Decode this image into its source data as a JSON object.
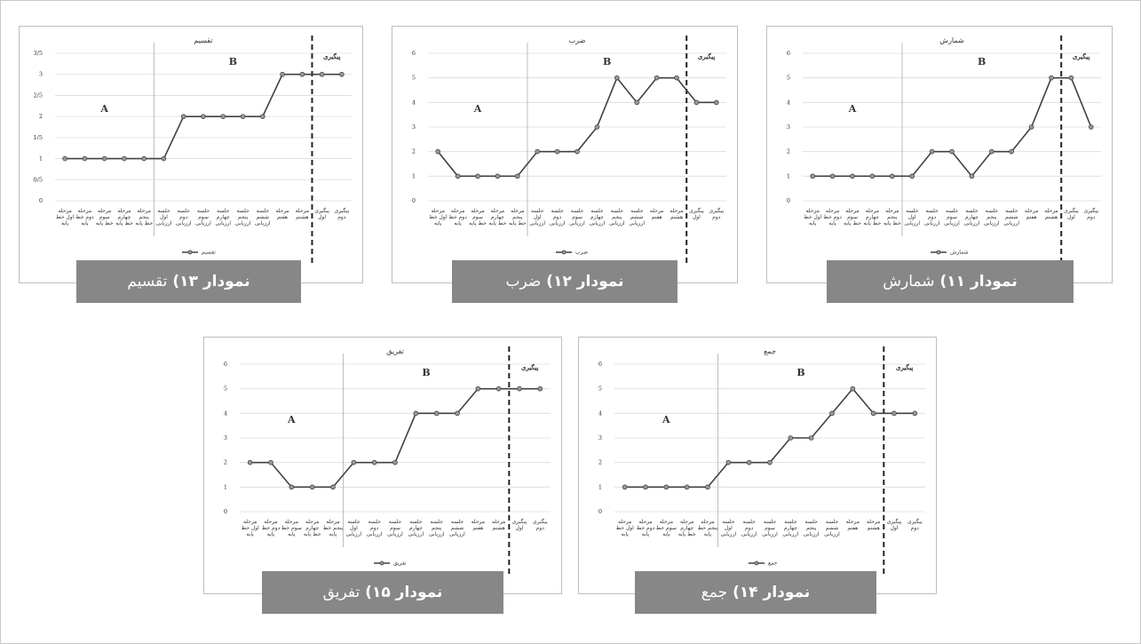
{
  "chart_data": [
    {
      "type": "line",
      "title": "تقسیم",
      "caption": {
        "label": "نمودار ۱۳)",
        "text": "تقسیم"
      },
      "categories": [
        "مرحله اول خط پایه",
        "مرحله دوم خط پایه",
        "مرحله سوم خط پایه",
        "مرحله چهارم خط پایه",
        "مرحله پنجم خط پایه",
        "جلسه اول ارزیابی",
        "جلسه دوم ارزیابی",
        "جلسه سوم ارزیابی",
        "جلسه چهارم ارزیابی",
        "جلسه پنجم ارزیابی",
        "جلسه ششم ارزیابی",
        "مرحله هفتم",
        "مرحله هشتم",
        "پیگیری اول",
        "پیگیری دوم"
      ],
      "series": [
        {
          "name": "تقسیم",
          "color": "#404040",
          "values": [
            1,
            1,
            1,
            1,
            1,
            1,
            2,
            2,
            2,
            2,
            2,
            3,
            3,
            3,
            3
          ]
        }
      ],
      "ylim": [
        0,
        3.5
      ],
      "yticks": [
        0,
        {
          "value": 0.5,
          "label": "0/5"
        },
        1,
        {
          "value": 1.5,
          "label": "1/5"
        },
        2,
        {
          "value": 2.5,
          "label": "2/5"
        },
        3,
        {
          "value": 3.5,
          "label": "3/5"
        }
      ],
      "grid": true,
      "annotations": [
        "A",
        "B",
        "پیگیری"
      ]
    },
    {
      "type": "line",
      "title": "ضرب",
      "caption": {
        "label": "نمودار ۱۲)",
        "text": "ضرب"
      },
      "categories": [
        "مرحله اول خط پایه",
        "مرحله دوم خط پایه",
        "مرحله سوم خط پایه",
        "مرحله چهارم خط پایه",
        "مرحله پنجم خط پایه",
        "جلسه اول ارزیابی",
        "جلسه دوم ارزیابی",
        "جلسه سوم ارزیابی",
        "جلسه چهارم ارزیابی",
        "جلسه پنجم ارزیابی",
        "جلسه ششم ارزیابی",
        "مرحله هفتم",
        "مرحله هشتم",
        "پیگیری اول",
        "پیگیری دوم"
      ],
      "series": [
        {
          "name": "ضرب",
          "color": "#404040",
          "values": [
            2,
            1,
            1,
            1,
            1,
            2,
            2,
            2,
            3,
            5,
            4,
            5,
            5,
            4,
            4
          ]
        }
      ],
      "ylim": [
        0,
        6
      ],
      "yticks": [
        0,
        1,
        2,
        3,
        4,
        5,
        6
      ],
      "grid": true,
      "annotations": [
        "A",
        "B",
        "پیگیری"
      ]
    },
    {
      "type": "line",
      "title": "شمارش",
      "caption": {
        "label": "نمودار ۱۱)",
        "text": "شمارش"
      },
      "categories": [
        "مرحله اول خط پایه",
        "مرحله دوم خط پایه",
        "مرحله سوم خط پایه",
        "مرحله چهارم خط پایه",
        "مرحله پنجم خط پایه",
        "جلسه اول ارزیابی",
        "جلسه دوم ارزیابی",
        "جلسه سوم ارزیابی",
        "جلسه چهارم ارزیابی",
        "جلسه پنجم ارزیابی",
        "جلسه ششم ارزیابی",
        "مرحله هفتم",
        "مرحله هشتم",
        "پیگیری اول",
        "پیگیری دوم"
      ],
      "series": [
        {
          "name": "شمارش",
          "color": "#404040",
          "values": [
            1,
            1,
            1,
            1,
            1,
            1,
            2,
            2,
            1,
            2,
            2,
            3,
            5,
            5,
            3
          ]
        }
      ],
      "ylim": [
        0,
        6
      ],
      "yticks": [
        0,
        1,
        2,
        3,
        4,
        5,
        6
      ],
      "grid": true,
      "annotations": [
        "A",
        "B",
        "پیگیری"
      ]
    },
    {
      "type": "line",
      "title": "تفریق",
      "caption": {
        "label": "نمودار ۱۵)",
        "text": "تفریق"
      },
      "categories": [
        "مرحله اول خط پایه",
        "مرحله دوم خط پایه",
        "مرحله سوم خط پایه",
        "مرحله چهارم خط پایه",
        "مرحله پنجم خط پایه",
        "جلسه اول ارزیابی",
        "جلسه دوم ارزیابی",
        "جلسه سوم ارزیابی",
        "جلسه چهارم ارزیابی",
        "جلسه پنجم ارزیابی",
        "جلسه ششم ارزیابی",
        "مرحله هفتم",
        "مرحله هشتم",
        "پیگیری اول",
        "پیگیری دوم"
      ],
      "series": [
        {
          "name": "تفریق",
          "color": "#404040",
          "values": [
            2,
            2,
            1,
            1,
            1,
            2,
            2,
            2,
            4,
            4,
            4,
            5,
            5,
            5,
            5
          ]
        }
      ],
      "ylim": [
        0,
        6
      ],
      "yticks": [
        0,
        1,
        2,
        3,
        4,
        5,
        6
      ],
      "grid": true,
      "annotations": [
        "A",
        "B",
        "پیگیری"
      ]
    },
    {
      "type": "line",
      "title": "جمع",
      "caption": {
        "label": "نمودار ۱۴)",
        "text": "جمع"
      },
      "categories": [
        "مرحله اول خط پایه",
        "مرحله دوم خط پایه",
        "مرحله سوم خط پایه",
        "مرحله چهارم خط پایه",
        "مرحله پنجم خط پایه",
        "جلسه اول ارزیابی",
        "جلسه دوم ارزیابی",
        "جلسه سوم ارزیابی",
        "جلسه چهارم ارزیابی",
        "جلسه پنجم ارزیابی",
        "جلسه ششم ارزیابی",
        "مرحله هفتم",
        "مرحله هشتم",
        "پیگیری اول",
        "پیگیری دوم"
      ],
      "series": [
        {
          "name": "جمع",
          "color": "#404040",
          "values": [
            1,
            1,
            1,
            1,
            1,
            2,
            2,
            2,
            3,
            3,
            4,
            5,
            4,
            4,
            4
          ]
        }
      ],
      "ylim": [
        0,
        6
      ],
      "yticks": [
        0,
        1,
        2,
        3,
        4,
        5,
        6
      ],
      "grid": true,
      "annotations": [
        "A",
        "B",
        "پیگیری"
      ]
    }
  ]
}
